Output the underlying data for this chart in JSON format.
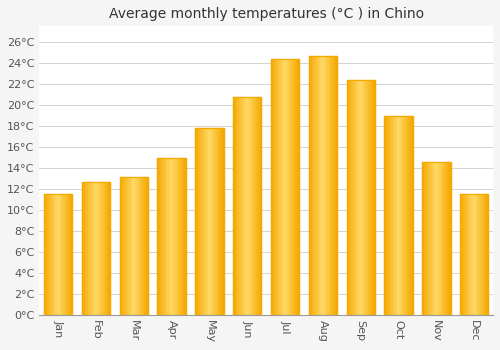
{
  "title": "Average monthly temperatures (°C ) in Chino",
  "months": [
    "Jan",
    "Feb",
    "Mar",
    "Apr",
    "May",
    "Jun",
    "Jul",
    "Aug",
    "Sep",
    "Oct",
    "Nov",
    "Dec"
  ],
  "values": [
    11.5,
    12.7,
    13.1,
    15.0,
    17.8,
    20.8,
    24.4,
    24.7,
    22.4,
    19.0,
    14.6,
    11.5
  ],
  "bar_color_center": "#FFD966",
  "bar_color_edge": "#F5A800",
  "background_color": "#F5F5F5",
  "plot_bg_color": "#FFFFFF",
  "grid_color": "#CCCCCC",
  "ytick_labels": [
    "0°C",
    "2°C",
    "4°C",
    "6°C",
    "8°C",
    "10°C",
    "12°C",
    "14°C",
    "16°C",
    "18°C",
    "20°C",
    "22°C",
    "24°C",
    "26°C"
  ],
  "ytick_values": [
    0,
    2,
    4,
    6,
    8,
    10,
    12,
    14,
    16,
    18,
    20,
    22,
    24,
    26
  ],
  "ylim": [
    0,
    27.5
  ],
  "title_fontsize": 10,
  "tick_fontsize": 8,
  "tick_color": "#555555",
  "title_color": "#333333",
  "bar_width": 0.75,
  "label_rotation": 270
}
